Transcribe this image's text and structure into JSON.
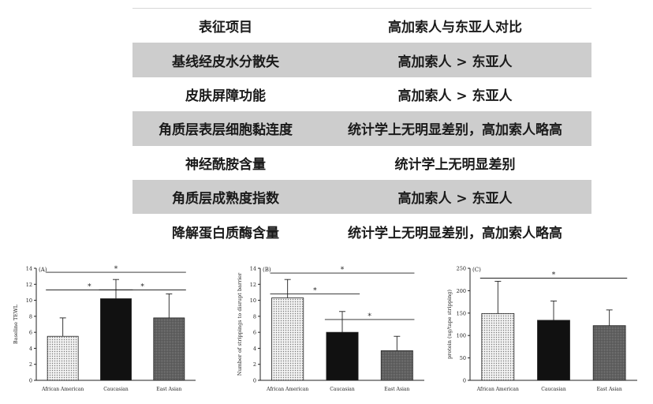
{
  "table": {
    "header": [
      "表征项目",
      "高加索人与东亚人对比"
    ],
    "rows": [
      [
        "基线经皮水分散失",
        "高加索人 > 东亚人"
      ],
      [
        "皮肤屏障功能",
        "高加索人 > 东亚人"
      ],
      [
        "角质层表层细胞黏连度",
        "统计学上无明显差别，高加索人略高"
      ],
      [
        "神经酰胺含量",
        "统计学上无明显差别"
      ],
      [
        "角质层成熟度指数",
        "高加索人 > 东亚人"
      ],
      [
        "降解蛋白质酶含量",
        "统计学上无明显差别，高加索人略高"
      ]
    ]
  },
  "chart_data": [
    {
      "type": "bar",
      "panel": "(A)",
      "categories": [
        "African American",
        "Caucasian",
        "East Asian"
      ],
      "values": [
        5.5,
        10.2,
        7.8
      ],
      "errors": [
        2.3,
        2.4,
        3.0
      ],
      "patterns": [
        "dotted",
        "solid",
        "dense"
      ],
      "ylabel": "Baseline TEWL",
      "ylim": [
        0,
        14
      ],
      "yticks": [
        0,
        2,
        4,
        6,
        8,
        10,
        12,
        14
      ],
      "significance": [
        {
          "from": 0,
          "to": 2,
          "y": 13.5,
          "label": "*"
        },
        {
          "from": 0,
          "to": 1,
          "y": 11.3,
          "label": "*"
        },
        {
          "from": 1,
          "to": 2,
          "y": 11.3,
          "label": "*"
        }
      ]
    },
    {
      "type": "bar",
      "panel": "(B)",
      "categories": [
        "African American",
        "Caucasian",
        "East Asian"
      ],
      "values": [
        10.3,
        6.0,
        3.7
      ],
      "errors": [
        2.3,
        2.6,
        1.8
      ],
      "patterns": [
        "dotted",
        "solid",
        "dense"
      ],
      "ylabel": "Number of strippings to disrupt barrier",
      "ylim": [
        0,
        14
      ],
      "yticks": [
        0,
        2,
        4,
        6,
        8,
        10,
        12,
        14
      ],
      "significance": [
        {
          "from": 0,
          "to": 2,
          "y": 13.4,
          "label": "*"
        },
        {
          "from": 0,
          "to": 1,
          "y": 10.8,
          "label": "*"
        },
        {
          "from": 1,
          "to": 2,
          "y": 7.6,
          "label": "*"
        }
      ]
    },
    {
      "type": "bar",
      "panel": "(C)",
      "categories": [
        "African American",
        "Caucasian",
        "East Asian"
      ],
      "values": [
        149,
        134,
        122
      ],
      "errors": [
        72,
        43,
        35
      ],
      "patterns": [
        "dotted",
        "solid",
        "dense"
      ],
      "ylabel": "protein (ug/tape stripping)",
      "ylim": [
        0,
        250
      ],
      "yticks": [
        0,
        50,
        100,
        150,
        200,
        250
      ],
      "significance": [
        {
          "from": 0,
          "to": 2,
          "y": 228,
          "label": "*"
        }
      ]
    }
  ]
}
